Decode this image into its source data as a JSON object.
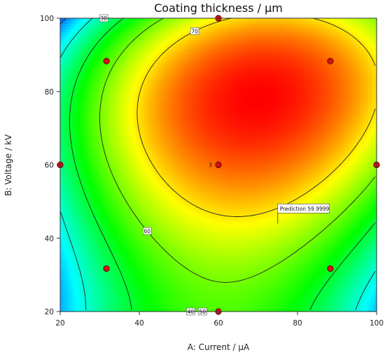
{
  "chart_data": {
    "type": "heatmap",
    "subtype": "contour",
    "title": "Coating thickness / µm",
    "xlabel": "A: Current / µA",
    "ylabel": "B: Voltage / kV",
    "xlim": [
      20,
      100
    ],
    "ylim": [
      20,
      100
    ],
    "xticks": [
      "20",
      "40",
      "60",
      "80",
      "100"
    ],
    "yticks": [
      "20",
      "40",
      "60",
      "80",
      "100"
    ],
    "color_scale": {
      "low": "#0000ff",
      "mid": "#00ff00",
      "high": "#ff0000"
    },
    "z_range": [
      22,
      84
    ],
    "contour_lines": [
      {
        "level": 30,
        "label": "30"
      },
      {
        "level": 40,
        "label": "40"
      },
      {
        "level": 50,
        "label": "50"
      },
      {
        "level": 60,
        "label": "60"
      },
      {
        "level": 70,
        "label": "70"
      }
    ],
    "design_points": [
      {
        "x": 20,
        "y": 60
      },
      {
        "x": 31.7,
        "y": 31.7
      },
      {
        "x": 31.7,
        "y": 88.3
      },
      {
        "x": 60,
        "y": 20
      },
      {
        "x": 60,
        "y": 60,
        "label": "3"
      },
      {
        "x": 60,
        "y": 100
      },
      {
        "x": 88.3,
        "y": 31.7
      },
      {
        "x": 88.3,
        "y": 88.3
      },
      {
        "x": 100,
        "y": 60
      }
    ],
    "prediction": {
      "label": "Prediction",
      "value": "59.9999",
      "x": 75,
      "y": 44
    },
    "grid": false
  }
}
